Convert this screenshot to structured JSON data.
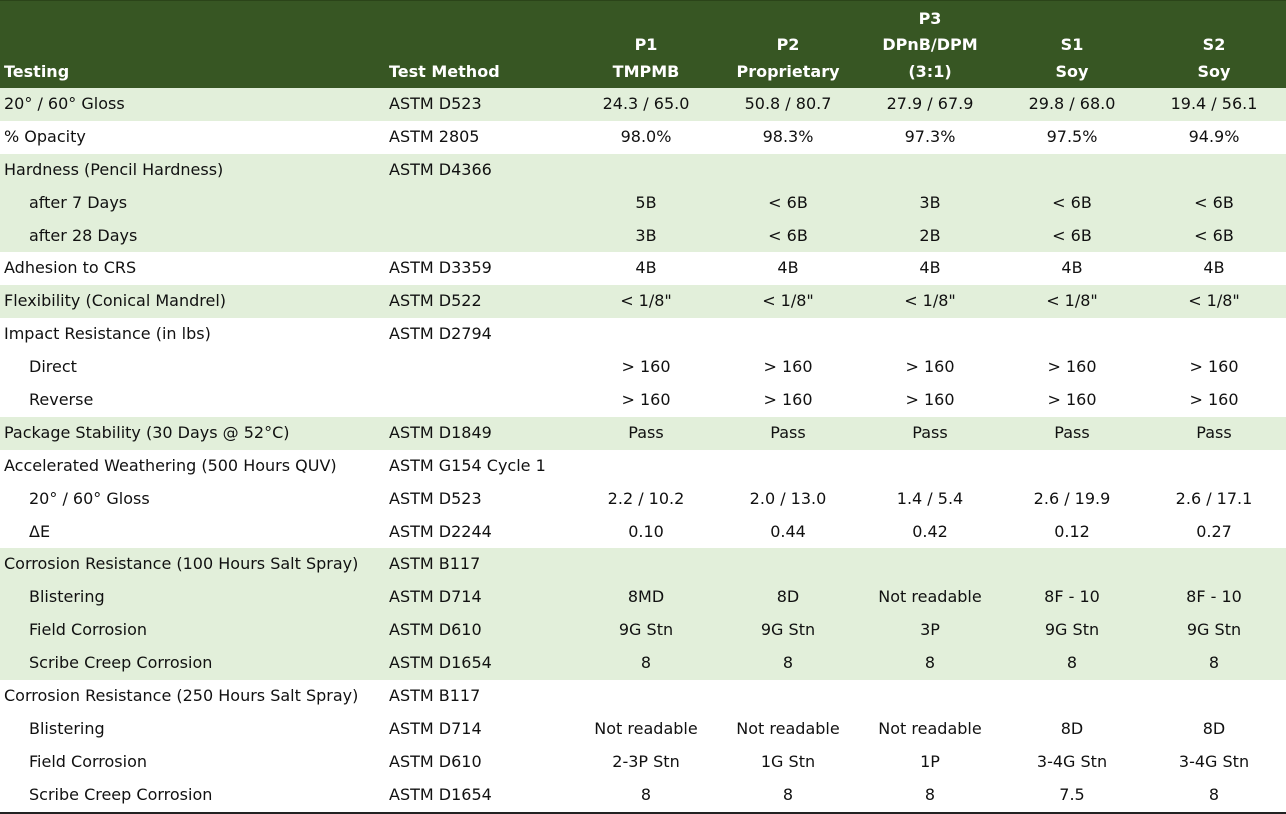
{
  "header": {
    "testing": "Testing",
    "test_method": "Test Method",
    "columns": [
      {
        "line1": "",
        "line2": "P1",
        "line3": "TMPMB"
      },
      {
        "line1": "",
        "line2": "P2",
        "line3": "Proprietary"
      },
      {
        "line1": "P3",
        "line2": "DPnB/DPM",
        "line3": "(3:1)"
      },
      {
        "line1": "",
        "line2": "S1",
        "line3": "Soy"
      },
      {
        "line1": "",
        "line2": "S2",
        "line3": "Soy"
      }
    ]
  },
  "colors": {
    "header_bg": "#375623",
    "band_bg": "#e2efda"
  },
  "rows": [
    {
      "test": "20° / 60° Gloss",
      "method": "ASTM D523",
      "values": [
        "24.3 / 65.0",
        "50.8 / 80.7",
        "27.9 / 67.9",
        "29.8 / 68.0",
        "19.4 / 56.1"
      ]
    },
    {
      "test": "% Opacity",
      "method": "ASTM 2805",
      "values": [
        "98.0%",
        "98.3%",
        "97.3%",
        "97.5%",
        "94.9%"
      ]
    },
    {
      "test": "Hardness (Pencil Hardness)",
      "method": "ASTM D4366",
      "values": [
        "",
        "",
        "",
        "",
        ""
      ]
    },
    {
      "test": "after 7 Days",
      "method": "",
      "values": [
        "5B",
        "< 6B",
        "3B",
        "< 6B",
        "< 6B"
      ]
    },
    {
      "test": "after 28 Days",
      "method": "",
      "values": [
        "3B",
        "< 6B",
        "2B",
        "< 6B",
        "< 6B"
      ]
    },
    {
      "test": "Adhesion to CRS",
      "method": "ASTM D3359",
      "values": [
        "4B",
        "4B",
        "4B",
        "4B",
        "4B"
      ]
    },
    {
      "test": "Flexibility (Conical Mandrel)",
      "method": "ASTM D522",
      "values": [
        "< 1/8\"",
        "< 1/8\"",
        "< 1/8\"",
        "< 1/8\"",
        "< 1/8\""
      ]
    },
    {
      "test": "Impact Resistance (in lbs)",
      "method": "ASTM D2794",
      "values": [
        "",
        "",
        "",
        "",
        ""
      ]
    },
    {
      "test": "Direct",
      "method": "",
      "values": [
        "> 160",
        "> 160",
        "> 160",
        "> 160",
        "> 160"
      ]
    },
    {
      "test": "Reverse",
      "method": "",
      "values": [
        "> 160",
        "> 160",
        "> 160",
        "> 160",
        "> 160"
      ]
    },
    {
      "test": "Package Stability (30 Days @ 52°C)",
      "method": "ASTM D1849",
      "values": [
        "Pass",
        "Pass",
        "Pass",
        "Pass",
        "Pass"
      ]
    },
    {
      "test": "Accelerated Weathering (500 Hours QUV)",
      "method": "ASTM G154 Cycle 1",
      "values": [
        "",
        "",
        "",
        "",
        ""
      ]
    },
    {
      "test": "20° / 60° Gloss",
      "method": "ASTM D523",
      "values": [
        "2.2 / 10.2",
        "2.0 / 13.0",
        "1.4 / 5.4",
        "2.6 / 19.9",
        "2.6 / 17.1"
      ]
    },
    {
      "test": "ΔE",
      "method": "ASTM D2244",
      "values": [
        "0.10",
        "0.44",
        "0.42",
        "0.12",
        "0.27"
      ]
    },
    {
      "test": "Corrosion Resistance (100 Hours Salt Spray)",
      "method": "ASTM B117",
      "values": [
        "",
        "",
        "",
        "",
        ""
      ]
    },
    {
      "test": "Blistering",
      "method": "ASTM D714",
      "values": [
        "8MD",
        "8D",
        "Not readable",
        "8F - 10",
        "8F - 10"
      ]
    },
    {
      "test": "Field Corrosion",
      "method": "ASTM D610",
      "values": [
        "9G Stn",
        "9G Stn",
        "3P",
        "9G Stn",
        "9G Stn"
      ]
    },
    {
      "test": "Scribe Creep Corrosion",
      "method": "ASTM D1654",
      "values": [
        "8",
        "8",
        "8",
        "8",
        "8"
      ]
    },
    {
      "test": "Corrosion Resistance (250 Hours Salt Spray)",
      "method": "ASTM B117",
      "values": [
        "",
        "",
        "",
        "",
        ""
      ]
    },
    {
      "test": "Blistering",
      "method": "ASTM D714",
      "values": [
        "Not readable",
        "Not readable",
        "Not readable",
        "8D",
        "8D"
      ]
    },
    {
      "test": "Field Corrosion",
      "method": "ASTM D610",
      "values": [
        "2-3P Stn",
        "1G Stn",
        "1P",
        "3-4G Stn",
        "3-4G Stn"
      ]
    },
    {
      "test": "Scribe Creep Corrosion",
      "method": "ASTM D1654",
      "values": [
        "8",
        "8",
        "8",
        "7.5",
        "8"
      ]
    }
  ]
}
